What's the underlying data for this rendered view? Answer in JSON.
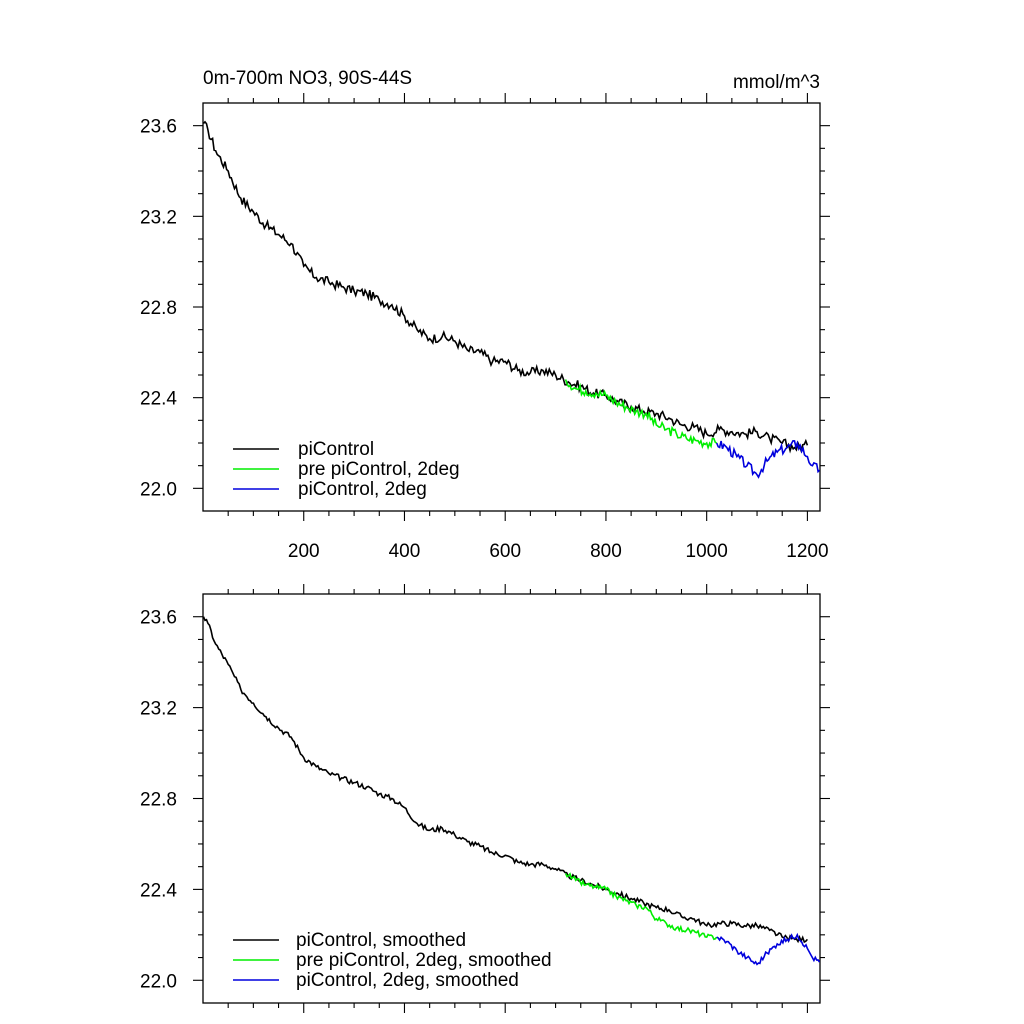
{
  "chart_data": [
    {
      "type": "line",
      "title": "0m-700m NO3, 90S-44S",
      "units": "mmol/m^3",
      "xlim": [
        0,
        1225
      ],
      "ylim": [
        21.9,
        23.7
      ],
      "xticks": [
        200,
        400,
        600,
        800,
        1000,
        1200
      ],
      "yticks": [
        22.0,
        22.4,
        22.8,
        23.2,
        23.6
      ],
      "ytick_labels": [
        "22.0",
        "22.4",
        "22.8",
        "23.2",
        "23.6"
      ],
      "xtick_labels": [
        "200",
        "400",
        "600",
        "800",
        "1000",
        "1200"
      ],
      "legend_position": "bottom-left",
      "series": [
        {
          "name": "piControl",
          "color": "#000000",
          "x": [
            1,
            10,
            25,
            50,
            75,
            100,
            125,
            150,
            175,
            200,
            225,
            250,
            275,
            300,
            325,
            350,
            375,
            400,
            425,
            450,
            475,
            500,
            525,
            550,
            575,
            600,
            625,
            650,
            675,
            700,
            725,
            750,
            775,
            800,
            825,
            850,
            875,
            900,
            925,
            950,
            975,
            1000,
            1025,
            1050,
            1075,
            1100,
            1125,
            1150,
            1175,
            1200
          ],
          "y": [
            23.61,
            23.58,
            23.49,
            23.4,
            23.28,
            23.22,
            23.16,
            23.12,
            23.08,
            22.98,
            22.93,
            22.91,
            22.89,
            22.87,
            22.86,
            22.83,
            22.81,
            22.76,
            22.7,
            22.66,
            22.67,
            22.65,
            22.61,
            22.6,
            22.56,
            22.56,
            22.52,
            22.51,
            22.52,
            22.5,
            22.47,
            22.45,
            22.42,
            22.41,
            22.38,
            22.36,
            22.34,
            22.33,
            22.31,
            22.28,
            22.27,
            22.24,
            22.26,
            22.25,
            22.24,
            22.25,
            22.22,
            22.2,
            22.18,
            22.19
          ]
        },
        {
          "name": "pre piControl, 2deg",
          "color": "#00ee00",
          "x": [
            720,
            740,
            760,
            780,
            800,
            820,
            840,
            860,
            880,
            900,
            920,
            940,
            960,
            980,
            1000,
            1020
          ],
          "y": [
            22.48,
            22.44,
            22.43,
            22.42,
            22.41,
            22.38,
            22.36,
            22.34,
            22.33,
            22.28,
            22.26,
            22.24,
            22.22,
            22.21,
            22.2,
            22.2
          ]
        },
        {
          "name": "piControl, 2deg",
          "color": "#0000dd",
          "x": [
            1020,
            1040,
            1060,
            1080,
            1100,
            1120,
            1140,
            1160,
            1180,
            1200,
            1210,
            1224
          ],
          "y": [
            22.2,
            22.18,
            22.14,
            22.1,
            22.06,
            22.12,
            22.16,
            22.18,
            22.2,
            22.14,
            22.1,
            22.08
          ]
        }
      ]
    },
    {
      "type": "line",
      "title": "",
      "units": "",
      "xlim": [
        0,
        1225
      ],
      "ylim": [
        21.9,
        23.7
      ],
      "xticks": [
        200,
        400,
        600,
        800,
        1000,
        1200
      ],
      "yticks": [
        22.0,
        22.4,
        22.8,
        23.2,
        23.6
      ],
      "ytick_labels": [
        "22.0",
        "22.4",
        "22.8",
        "23.2",
        "23.6"
      ],
      "xtick_labels": [],
      "legend_position": "bottom-left",
      "series": [
        {
          "name": "piControl, smoothed",
          "color": "#000000",
          "x": [
            1,
            10,
            25,
            50,
            75,
            100,
            125,
            150,
            175,
            200,
            225,
            250,
            275,
            300,
            325,
            350,
            375,
            400,
            425,
            450,
            475,
            500,
            525,
            550,
            575,
            600,
            625,
            650,
            675,
            700,
            725,
            750,
            775,
            800,
            825,
            850,
            875,
            900,
            925,
            950,
            975,
            1000,
            1025,
            1050,
            1075,
            1100,
            1125,
            1150,
            1175,
            1200
          ],
          "y": [
            23.6,
            23.57,
            23.48,
            23.39,
            23.28,
            23.22,
            23.16,
            23.11,
            23.07,
            22.98,
            22.94,
            22.91,
            22.89,
            22.87,
            22.85,
            22.82,
            22.8,
            22.76,
            22.69,
            22.66,
            22.67,
            22.64,
            22.61,
            22.59,
            22.56,
            22.55,
            22.52,
            22.51,
            22.51,
            22.49,
            22.46,
            22.44,
            22.42,
            22.4,
            22.38,
            22.36,
            22.34,
            22.32,
            22.31,
            22.28,
            22.27,
            22.24,
            22.25,
            22.25,
            22.24,
            22.24,
            22.22,
            22.19,
            22.18,
            22.18
          ]
        },
        {
          "name": "pre piControl, 2deg, smoothed",
          "color": "#00ee00",
          "x": [
            720,
            740,
            760,
            780,
            800,
            820,
            840,
            860,
            880,
            900,
            920,
            940,
            960,
            980,
            1000,
            1020
          ],
          "y": [
            22.47,
            22.44,
            22.42,
            22.41,
            22.4,
            22.37,
            22.35,
            22.33,
            22.32,
            22.27,
            22.25,
            22.23,
            22.22,
            22.21,
            22.19,
            22.19
          ]
        },
        {
          "name": "piControl, 2deg, smoothed",
          "color": "#0000dd",
          "x": [
            1020,
            1040,
            1060,
            1080,
            1100,
            1120,
            1140,
            1160,
            1180,
            1200,
            1210,
            1224
          ],
          "y": [
            22.19,
            22.17,
            22.13,
            22.1,
            22.07,
            22.12,
            22.16,
            22.18,
            22.2,
            22.14,
            22.1,
            22.08
          ]
        }
      ]
    }
  ]
}
